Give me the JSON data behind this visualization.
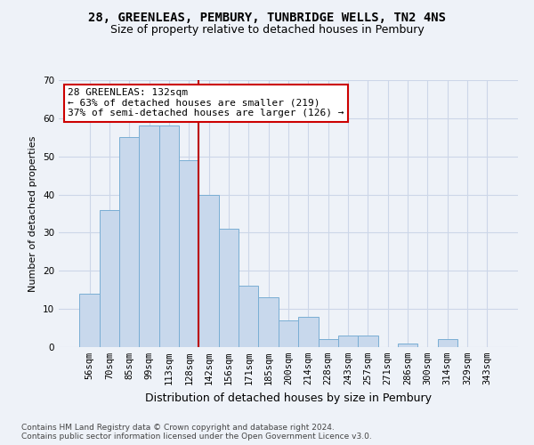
{
  "title1": "28, GREENLEAS, PEMBURY, TUNBRIDGE WELLS, TN2 4NS",
  "title2": "Size of property relative to detached houses in Pembury",
  "xlabel": "Distribution of detached houses by size in Pembury",
  "ylabel": "Number of detached properties",
  "bar_labels": [
    "56sqm",
    "70sqm",
    "85sqm",
    "99sqm",
    "113sqm",
    "128sqm",
    "142sqm",
    "156sqm",
    "171sqm",
    "185sqm",
    "200sqm",
    "214sqm",
    "228sqm",
    "243sqm",
    "257sqm",
    "271sqm",
    "286sqm",
    "300sqm",
    "314sqm",
    "329sqm",
    "343sqm"
  ],
  "bar_values": [
    14,
    36,
    55,
    58,
    58,
    49,
    40,
    31,
    16,
    13,
    7,
    8,
    2,
    3,
    3,
    0,
    1,
    0,
    2,
    0,
    0
  ],
  "bar_color": "#c8d8ec",
  "bar_edge_color": "#7aaed4",
  "background_color": "#eef2f8",
  "grid_color": "#ccd6e8",
  "vline_color": "#bb0000",
  "annotation_text": "28 GREENLEAS: 132sqm\n← 63% of detached houses are smaller (219)\n37% of semi-detached houses are larger (126) →",
  "annotation_box_color": "#ffffff",
  "annotation_box_edge_color": "#cc0000",
  "ylim": [
    0,
    70
  ],
  "yticks": [
    0,
    10,
    20,
    30,
    40,
    50,
    60,
    70
  ],
  "footer_text": "Contains HM Land Registry data © Crown copyright and database right 2024.\nContains public sector information licensed under the Open Government Licence v3.0.",
  "title1_fontsize": 10,
  "title2_fontsize": 9,
  "xlabel_fontsize": 9,
  "ylabel_fontsize": 8,
  "tick_fontsize": 7.5,
  "annotation_fontsize": 8,
  "footer_fontsize": 6.5
}
